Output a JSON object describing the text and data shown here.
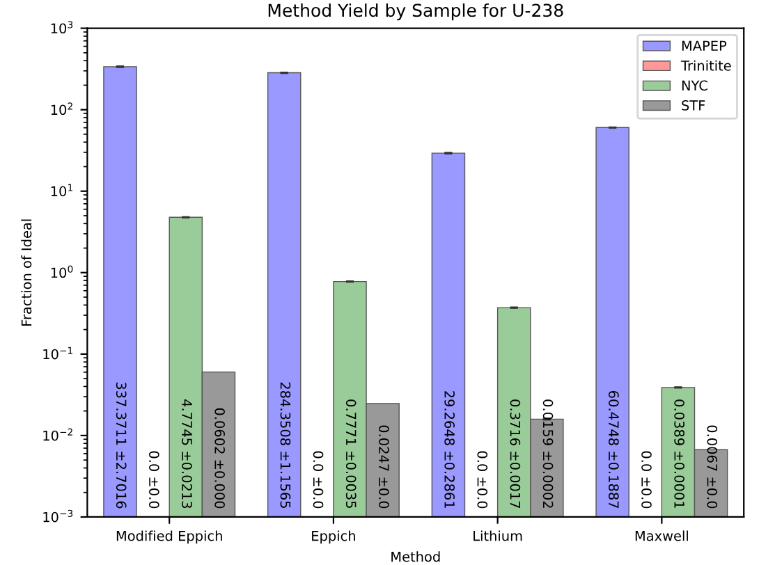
{
  "chart_data": {
    "type": "bar",
    "title": "Method Yield by Sample for U-238",
    "xlabel": "Method",
    "ylabel": "Fraction of Ideal",
    "categories": [
      "Modified Eppich",
      "Eppich",
      "Lithium",
      "Maxwell"
    ],
    "series": [
      {
        "name": "MAPEP",
        "color": "#9999ff",
        "values": [
          337.3711,
          284.3508,
          29.2648,
          60.4748
        ],
        "errors": [
          2.7016,
          1.1565,
          0.2861,
          0.1887
        ],
        "value_labels": [
          "337.3711 ±2.7016",
          "284.3508 ±1.1565",
          "29.2648 ±0.2861",
          "60.4748 ±0.1887"
        ]
      },
      {
        "name": "Trinitite",
        "color": "#ff9999",
        "values": [
          null,
          null,
          null,
          null
        ],
        "value_labels": [
          "0.0 ±0.0",
          "0.0 ±0.0",
          "0.0 ±0.0",
          "0.0 ±0.0"
        ]
      },
      {
        "name": "NYC",
        "color": "#99cc99",
        "values": [
          4.7745,
          0.7771,
          0.3716,
          0.0389
        ],
        "errors": [
          0.0213,
          0.0035,
          0.0017,
          0.0001
        ],
        "value_labels": [
          "4.7745 ±0.0213",
          "0.7771 ±0.0035",
          "0.3716 ±0.0017",
          "0.0389 ±0.0001"
        ]
      },
      {
        "name": "STF",
        "color": "#999999",
        "values": [
          0.0602,
          0.0247,
          0.0159,
          0.0067
        ],
        "errors": [
          null,
          null,
          0.0002,
          null
        ],
        "value_labels": [
          "0.0602 ±0.000",
          "0.0247 ±0.0",
          "0.0159 ±0.0002",
          "0.0067 ±0.0"
        ]
      }
    ],
    "log": "y",
    "ylim": [
      0.001,
      1000
    ],
    "yticks": [
      {
        "value": 0.001,
        "label": "10$^{−3}$"
      },
      {
        "value": 0.01,
        "label": "10$^{−2}$"
      },
      {
        "value": 0.1,
        "label": "10$^{−1}$"
      },
      {
        "value": 1,
        "label": "10$^{0}$"
      },
      {
        "value": 10,
        "label": "10$^{1}$"
      },
      {
        "value": 100,
        "label": "10$^{2}$"
      },
      {
        "value": 1000,
        "label": "10$^{3}$"
      }
    ],
    "legend": "top right",
    "grid": false
  }
}
